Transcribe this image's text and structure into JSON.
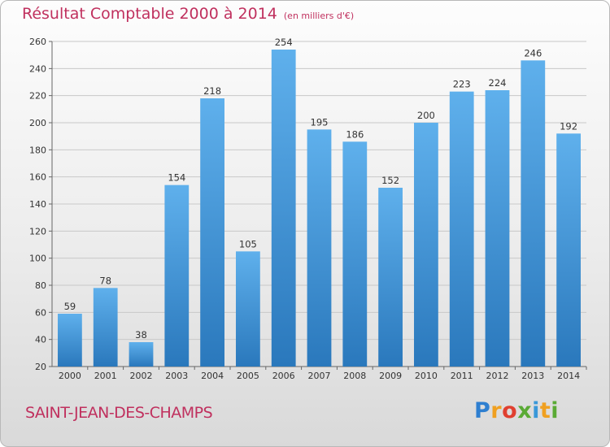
{
  "chart_data": {
    "type": "bar",
    "title": "Résultat Comptable 2000 à 2014",
    "subtitle": "(en milliers d'€)",
    "categories": [
      "2000",
      "2001",
      "2002",
      "2003",
      "2004",
      "2005",
      "2006",
      "2007",
      "2008",
      "2009",
      "2010",
      "2011",
      "2012",
      "2013",
      "2014"
    ],
    "values": [
      59,
      78,
      38,
      154,
      218,
      105,
      254,
      195,
      186,
      152,
      200,
      223,
      224,
      246,
      192
    ],
    "ylim": [
      20,
      260
    ],
    "yticks": [
      20,
      40,
      60,
      80,
      100,
      120,
      140,
      160,
      180,
      200,
      220,
      240,
      260
    ],
    "xlabel": "",
    "ylabel": "",
    "grid": true
  },
  "footer": {
    "city": "SAINT-JEAN-DES-CHAMPS",
    "logo_letters": [
      "P",
      "r",
      "o",
      "x",
      "i",
      "t",
      "i"
    ]
  },
  "colors": {
    "title": "#c0305e",
    "bar_top": "#5fb0ec",
    "bar_bottom": "#2a78bc"
  }
}
